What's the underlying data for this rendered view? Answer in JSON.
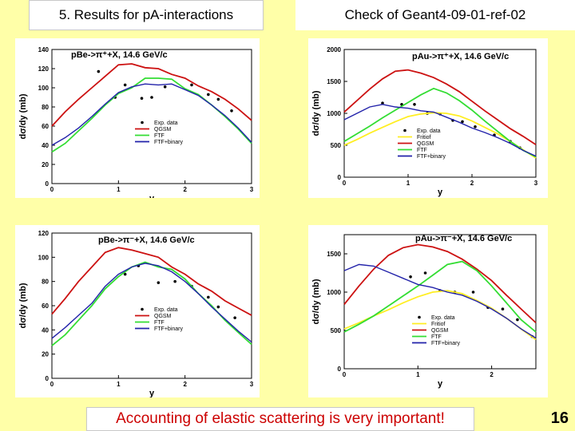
{
  "header": {
    "left_title": "5. Results for pA-interactions",
    "right_title": "Check of Geant4-09-01-ref-02"
  },
  "footer": {
    "note": "Accounting of elastic scattering is very important!",
    "page_number": "16"
  },
  "colors": {
    "exp": "#000000",
    "fritiof": "#ffee22",
    "qgsm": "#cc1111",
    "ftf": "#33dd33",
    "ftfb": "#2222aa"
  },
  "chart_data": [
    {
      "type": "line",
      "title": "pBe->π⁺+X, 14.6 GeV/c",
      "xlabel": "y",
      "ylabel": "dσ/dy (mb)",
      "xlim": [
        0,
        3
      ],
      "ylim": [
        0,
        140
      ],
      "xticks": [
        0,
        1,
        2,
        3
      ],
      "yticks": [
        0,
        20,
        40,
        60,
        80,
        100,
        120,
        140
      ],
      "legend_position": "lower-center",
      "series": [
        {
          "name": "Exp. data",
          "key": "exp",
          "kind": "points",
          "x": [
            0.7,
            0.95,
            1.1,
            1.35,
            1.5,
            1.7,
            2.1,
            2.35,
            2.5,
            2.7
          ],
          "y": [
            117,
            90,
            103,
            89,
            90,
            101,
            103,
            93,
            88,
            76
          ]
        },
        {
          "name": "QGSM",
          "key": "qgsm",
          "kind": "line",
          "x": [
            0.0,
            0.2,
            0.4,
            0.6,
            0.8,
            1.0,
            1.2,
            1.4,
            1.6,
            1.8,
            2.0,
            2.2,
            2.4,
            2.6,
            2.8,
            3.0
          ],
          "y": [
            60,
            75,
            88,
            100,
            112,
            124,
            125,
            121,
            120,
            114,
            110,
            102,
            96,
            88,
            78,
            66
          ]
        },
        {
          "name": "FTF",
          "key": "ftf",
          "kind": "line",
          "x": [
            0.0,
            0.2,
            0.4,
            0.6,
            0.8,
            1.0,
            1.2,
            1.4,
            1.6,
            1.8,
            2.0,
            2.2,
            2.4,
            2.6,
            2.8,
            3.0
          ],
          "y": [
            33,
            42,
            55,
            68,
            82,
            94,
            100,
            110,
            110,
            109,
            99,
            93,
            82,
            70,
            57,
            42
          ]
        },
        {
          "name": "FTF+binary",
          "key": "ftfb",
          "kind": "line",
          "x": [
            0.0,
            0.2,
            0.4,
            0.6,
            0.8,
            1.0,
            1.2,
            1.4,
            1.6,
            1.8,
            2.0,
            2.2,
            2.4,
            2.6,
            2.8,
            3.0
          ],
          "y": [
            40,
            48,
            58,
            70,
            83,
            95,
            101,
            104,
            103,
            104,
            98,
            92,
            82,
            71,
            58,
            43
          ]
        }
      ]
    },
    {
      "type": "line",
      "title": "pAu->π⁺+X, 14.6 GeV/c",
      "xlabel": "y",
      "ylabel": "dσ/dy (mb)",
      "xlim": [
        0,
        3
      ],
      "ylim": [
        0,
        2000
      ],
      "xticks": [
        0,
        1,
        2,
        3
      ],
      "yticks": [
        0,
        500,
        1000,
        1500,
        2000
      ],
      "legend_position": "lower-center",
      "series": [
        {
          "name": "Exp. data",
          "key": "exp",
          "kind": "points",
          "x": [
            0.6,
            0.9,
            1.1,
            1.3,
            1.5,
            1.7,
            1.85,
            2.05,
            2.35,
            2.6,
            2.75
          ],
          "y": [
            1160,
            1140,
            1140,
            1000,
            990,
            890,
            870,
            790,
            660,
            560,
            460
          ]
        },
        {
          "name": "Fritiof",
          "key": "fritiof",
          "kind": "line",
          "x": [
            0.0,
            0.2,
            0.4,
            0.6,
            0.8,
            1.0,
            1.2,
            1.4,
            1.6,
            1.8,
            2.0,
            2.2,
            2.4,
            2.6,
            2.8,
            3.0
          ],
          "y": [
            500,
            590,
            690,
            780,
            870,
            950,
            990,
            1010,
            1000,
            960,
            880,
            780,
            680,
            560,
            430,
            300
          ]
        },
        {
          "name": "QGSM",
          "key": "qgsm",
          "kind": "line",
          "x": [
            0.0,
            0.2,
            0.4,
            0.6,
            0.8,
            1.0,
            1.2,
            1.4,
            1.6,
            1.8,
            2.0,
            2.2,
            2.4,
            2.6,
            2.8,
            3.0
          ],
          "y": [
            1020,
            1200,
            1380,
            1540,
            1660,
            1680,
            1630,
            1560,
            1460,
            1340,
            1190,
            1040,
            900,
            760,
            640,
            510
          ]
        },
        {
          "name": "FTF",
          "key": "ftf",
          "kind": "line",
          "x": [
            0.0,
            0.2,
            0.4,
            0.6,
            0.8,
            1.0,
            1.2,
            1.4,
            1.6,
            1.8,
            2.0,
            2.2,
            2.4,
            2.6,
            2.8,
            3.0
          ],
          "y": [
            560,
            680,
            800,
            930,
            1050,
            1170,
            1290,
            1390,
            1320,
            1200,
            1050,
            880,
            720,
            560,
            420,
            320
          ]
        },
        {
          "name": "FTF+binary",
          "key": "ftfb",
          "kind": "line",
          "x": [
            0.0,
            0.2,
            0.4,
            0.6,
            0.8,
            1.0,
            1.2,
            1.4,
            1.6,
            1.8,
            2.0,
            2.2,
            2.4,
            2.6,
            2.8,
            3.0
          ],
          "y": [
            900,
            1000,
            1100,
            1140,
            1100,
            1080,
            1040,
            1020,
            940,
            860,
            770,
            700,
            620,
            530,
            420,
            330
          ]
        }
      ]
    },
    {
      "type": "line",
      "title": "pBe->π⁻+X, 14.6 GeV/c",
      "xlabel": "y",
      "ylabel": "dσ/dy (mb)",
      "xlim": [
        0,
        3
      ],
      "ylim": [
        0,
        120
      ],
      "xticks": [
        0,
        1,
        2,
        3
      ],
      "yticks": [
        0,
        20,
        40,
        60,
        80,
        100,
        120
      ],
      "legend_position": "lower-center",
      "series": [
        {
          "name": "Exp. data",
          "key": "exp",
          "kind": "points",
          "x": [
            1.1,
            1.3,
            1.6,
            1.85,
            2.1,
            2.35,
            2.5,
            2.75
          ],
          "y": [
            86,
            93,
            79,
            80,
            76,
            67,
            59,
            50
          ]
        },
        {
          "name": "QGSM",
          "key": "qgsm",
          "kind": "line",
          "x": [
            0.0,
            0.2,
            0.4,
            0.6,
            0.8,
            1.0,
            1.2,
            1.4,
            1.6,
            1.8,
            2.0,
            2.2,
            2.4,
            2.6,
            2.8,
            3.0
          ],
          "y": [
            53,
            66,
            80,
            92,
            104,
            108,
            106,
            103,
            100,
            92,
            86,
            78,
            72,
            64,
            58,
            52
          ]
        },
        {
          "name": "FTF",
          "key": "ftf",
          "kind": "line",
          "x": [
            0.0,
            0.2,
            0.4,
            0.6,
            0.8,
            1.0,
            1.2,
            1.4,
            1.6,
            1.8,
            2.0,
            2.2,
            2.4,
            2.6,
            2.8,
            3.0
          ],
          "y": [
            27,
            36,
            48,
            60,
            74,
            84,
            92,
            96,
            92,
            90,
            82,
            70,
            60,
            48,
            38,
            28
          ]
        },
        {
          "name": "FTF+binary",
          "key": "ftfb",
          "kind": "line",
          "x": [
            0.0,
            0.2,
            0.4,
            0.6,
            0.8,
            1.0,
            1.2,
            1.4,
            1.6,
            1.8,
            2.0,
            2.2,
            2.4,
            2.6,
            2.8,
            3.0
          ],
          "y": [
            33,
            42,
            52,
            62,
            76,
            86,
            92,
            95,
            93,
            88,
            80,
            70,
            59,
            49,
            39,
            30
          ]
        }
      ]
    },
    {
      "type": "line",
      "title": "pAu->π⁻+X, 14.6 GeV/c",
      "xlabel": "y",
      "ylabel": "dσ/dy (mb)",
      "xlim": [
        0,
        2.6
      ],
      "ylim": [
        0,
        1750
      ],
      "xticks": [
        0,
        1,
        2
      ],
      "yticks": [
        0,
        500,
        1000,
        1500
      ],
      "legend_position": "lower-center",
      "series": [
        {
          "name": "Exp. data",
          "key": "exp",
          "kind": "points",
          "x": [
            0.9,
            1.1,
            1.3,
            1.5,
            1.75,
            1.95,
            2.15,
            2.35,
            2.55
          ],
          "y": [
            1200,
            1250,
            1020,
            1000,
            1000,
            800,
            780,
            640,
            420
          ]
        },
        {
          "name": "Fritiof",
          "key": "fritiof",
          "kind": "line",
          "x": [
            0.0,
            0.2,
            0.4,
            0.6,
            0.8,
            1.0,
            1.2,
            1.4,
            1.6,
            1.8,
            2.0,
            2.2,
            2.4,
            2.6
          ],
          "y": [
            520,
            600,
            690,
            770,
            860,
            940,
            1000,
            1020,
            980,
            890,
            790,
            660,
            520,
            380
          ]
        },
        {
          "name": "QGSM",
          "key": "qgsm",
          "kind": "line",
          "x": [
            0.0,
            0.2,
            0.4,
            0.6,
            0.8,
            1.0,
            1.2,
            1.4,
            1.6,
            1.8,
            2.0,
            2.2,
            2.4,
            2.6
          ],
          "y": [
            840,
            1080,
            1300,
            1480,
            1580,
            1620,
            1590,
            1530,
            1430,
            1300,
            1150,
            960,
            780,
            600
          ]
        },
        {
          "name": "FTF",
          "key": "ftf",
          "kind": "line",
          "x": [
            0.0,
            0.2,
            0.4,
            0.6,
            0.8,
            1.0,
            1.2,
            1.4,
            1.6,
            1.8,
            2.0,
            2.2,
            2.4,
            2.6
          ],
          "y": [
            480,
            580,
            690,
            820,
            950,
            1080,
            1220,
            1360,
            1400,
            1280,
            1080,
            860,
            640,
            480
          ]
        },
        {
          "name": "FTF+binary",
          "key": "ftfb",
          "kind": "line",
          "x": [
            0.0,
            0.2,
            0.4,
            0.6,
            0.8,
            1.0,
            1.2,
            1.4,
            1.6,
            1.8,
            2.0,
            2.2,
            2.4,
            2.6
          ],
          "y": [
            1280,
            1360,
            1340,
            1260,
            1180,
            1100,
            1060,
            1000,
            960,
            880,
            780,
            660,
            520,
            400
          ]
        }
      ]
    }
  ]
}
